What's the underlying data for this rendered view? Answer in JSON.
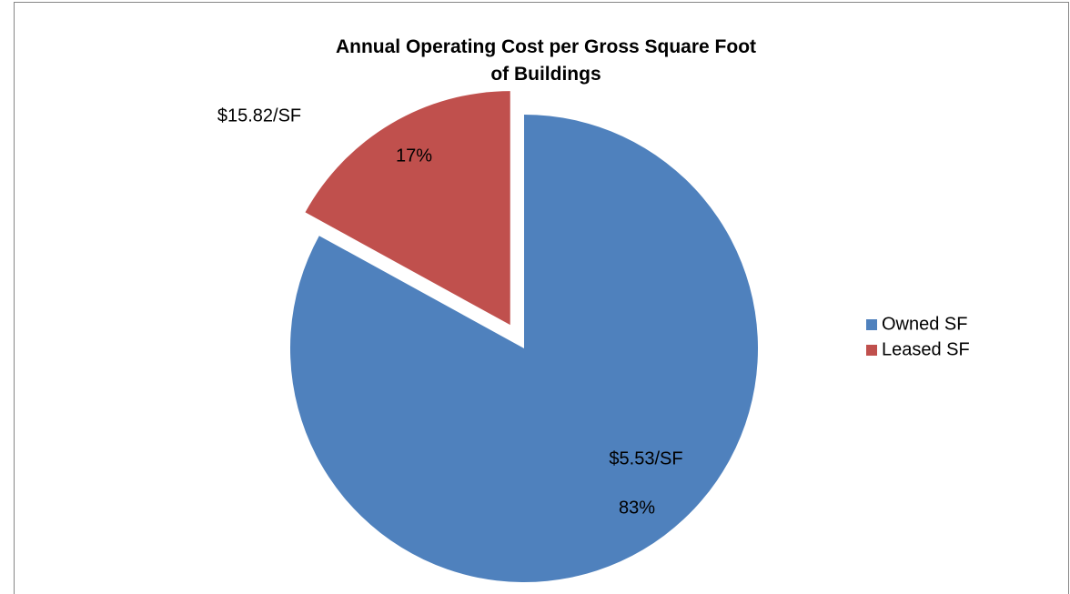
{
  "chart_data": {
    "type": "pie",
    "title": "Annual Operating Cost per Gross Square Foot of Buildings",
    "categories": [
      "Owned SF",
      "Leased SF"
    ],
    "values": [
      83,
      17
    ],
    "value_labels": [
      "83%",
      "17%"
    ],
    "annotations": [
      "$5.53/SF",
      "$15.82/SF"
    ],
    "colors": [
      "#4f81bd",
      "#c0504d"
    ],
    "legend": "right"
  }
}
